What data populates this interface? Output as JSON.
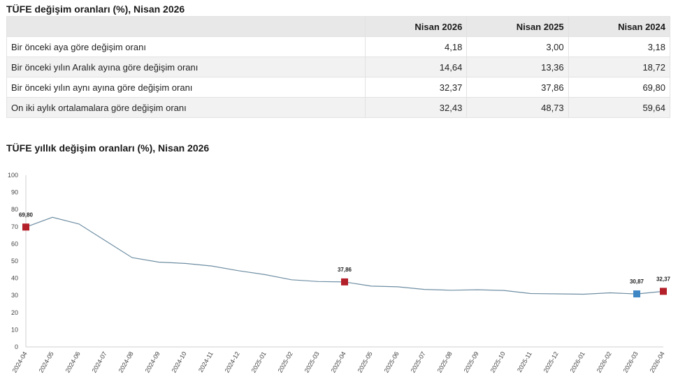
{
  "table_title": "TÜFE değişim oranları (%), Nisan 2026",
  "table": {
    "headers": [
      "",
      "Nisan 2026",
      "Nisan 2025",
      "Nisan 2024"
    ],
    "rows": [
      {
        "label": "Bir önceki aya göre değişim oranı",
        "values": [
          "4,18",
          "3,00",
          "3,18"
        ]
      },
      {
        "label": "Bir önceki yılın Aralık ayına göre değişim oranı",
        "values": [
          "14,64",
          "13,36",
          "18,72"
        ]
      },
      {
        "label": "Bir önceki yılın aynı ayına göre değişim oranı",
        "values": [
          "32,37",
          "37,86",
          "69,80"
        ]
      },
      {
        "label": "On iki aylık ortalamalara göre değişim oranı",
        "values": [
          "32,43",
          "48,73",
          "59,64"
        ]
      }
    ]
  },
  "chart_title": "TÜFE yıllık değişim oranları (%), Nisan 2026",
  "chart_data": {
    "type": "line",
    "title": "TÜFE yıllık değişim oranları (%), Nisan 2026",
    "xlabel": "",
    "ylabel": "",
    "ylim": [
      0,
      100
    ],
    "yticks": [
      0,
      10,
      20,
      30,
      40,
      50,
      60,
      70,
      80,
      90,
      100
    ],
    "grid": false,
    "x": [
      "2024-04",
      "2024-05",
      "2024-06",
      "2024-07",
      "2024-08",
      "2024-09",
      "2024-10",
      "2024-11",
      "2024-12",
      "2025-01",
      "2025-02",
      "2025-03",
      "2025-04",
      "2025-05",
      "2025-06",
      "2025-07",
      "2025-08",
      "2025-09",
      "2025-10",
      "2025-11",
      "2025-12",
      "2026-01",
      "2026-02",
      "2026-03",
      "2026-04"
    ],
    "series": [
      {
        "name": "",
        "color": "#6e8ea3",
        "values": [
          69.8,
          75.5,
          71.6,
          61.8,
          52.0,
          49.4,
          48.6,
          47.1,
          44.4,
          42.1,
          39.1,
          38.1,
          37.86,
          35.4,
          35.0,
          33.5,
          33.0,
          33.3,
          32.9,
          31.1,
          30.9,
          30.7,
          31.5,
          30.87,
          32.37
        ]
      }
    ],
    "markers": [
      {
        "index": 0,
        "label": "69,80",
        "color": "#b3202a"
      },
      {
        "index": 12,
        "label": "37,86",
        "color": "#b3202a"
      },
      {
        "index": 23,
        "label": "30,87",
        "color": "#3f86c4"
      },
      {
        "index": 24,
        "label": "32,37",
        "color": "#b3202a"
      }
    ]
  }
}
